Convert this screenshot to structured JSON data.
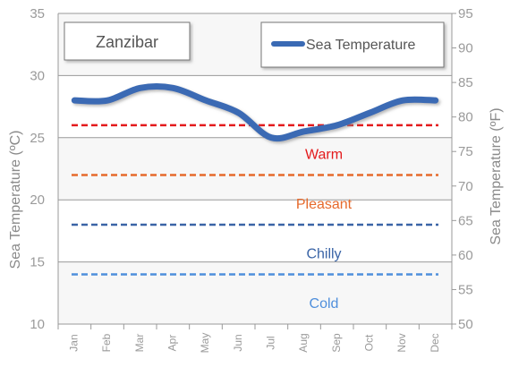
{
  "chart_data": {
    "type": "line",
    "title": "Zanzibar",
    "categories": [
      "Jan",
      "Feb",
      "Mar",
      "Apr",
      "May",
      "Jun",
      "Jul",
      "Aug",
      "Sep",
      "Oct",
      "Nov",
      "Dec"
    ],
    "series": [
      {
        "name": "Sea Temperature",
        "color": "#3a6ab4",
        "values": [
          28,
          28,
          29,
          29,
          28,
          27,
          25,
          25.5,
          26,
          27,
          28,
          28
        ]
      }
    ],
    "ylabel_left": "Sea Temperature (ºC)",
    "ylabel_right": "Sea Temperature (ºF)",
    "ylim_left": [
      10,
      35
    ],
    "ylim_right": [
      50,
      95
    ],
    "yticks_left": [
      10,
      15,
      20,
      25,
      30,
      35
    ],
    "yticks_right": [
      50,
      55,
      60,
      65,
      70,
      75,
      80,
      85,
      90,
      95
    ],
    "reference_lines": [
      {
        "label": "Warm",
        "value": 26,
        "color": "#e31a1c"
      },
      {
        "label": "Pleasant",
        "value": 22,
        "color": "#e66a2c"
      },
      {
        "label": "Chilly",
        "value": 18,
        "color": "#3a64a6"
      },
      {
        "label": "Cold",
        "value": 14,
        "color": "#4f8fdc"
      }
    ],
    "grid": true,
    "legend_position": "top-right"
  }
}
